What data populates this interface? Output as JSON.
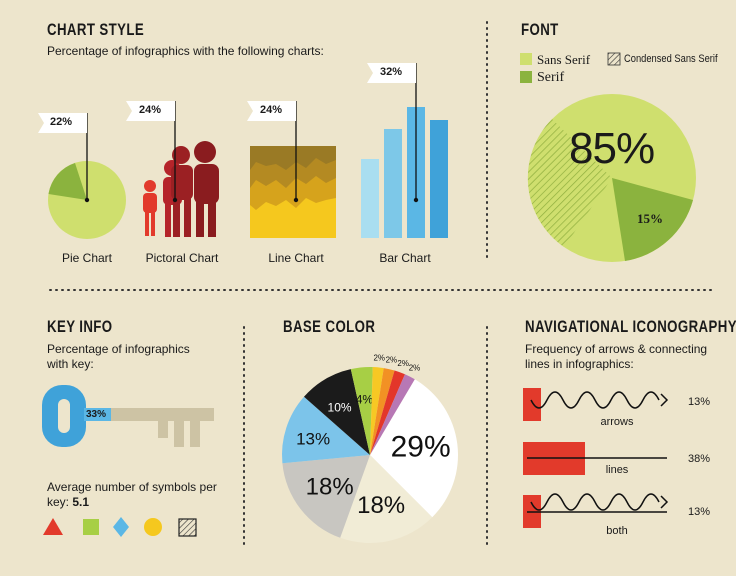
{
  "chart_style": {
    "title": "CHART STYLE",
    "subtitle": "Percentage of infographics with the following charts:",
    "items": [
      {
        "label": "Pie Chart",
        "value": "22%"
      },
      {
        "label": "Pictoral Chart",
        "value": "24%"
      },
      {
        "label": "Line Chart",
        "value": "24%"
      },
      {
        "label": "Bar Chart",
        "value": "32%"
      }
    ]
  },
  "font": {
    "title": "FONT",
    "legend": [
      "Sans Serif",
      "Condensed Sans Serif",
      "Serif"
    ],
    "big_value": "85%",
    "small_value": "15%"
  },
  "key_info": {
    "title": "KEY INFO",
    "subtitle": "Percentage of infographics with key:",
    "value": "33%",
    "avg_text": "Average number of symbols per key:",
    "avg_value": "5.1",
    "symbols": [
      "triangle-icon",
      "square-icon",
      "diamond-icon",
      "circle-icon",
      "hatched-square-icon"
    ]
  },
  "base_color": {
    "title": "BASE COLOR"
  },
  "nav": {
    "title": "NAVIGATIONAL ICONOGRAPHY",
    "subtitle": "Frequency of arrows & connecting lines in infographics:",
    "rows": [
      {
        "label": "arrows",
        "value": "13%"
      },
      {
        "label": "lines",
        "value": "38%"
      },
      {
        "label": "both",
        "value": "13%"
      }
    ]
  },
  "colors": {
    "background": "#ede5cc",
    "light_green": "#cfdf6e",
    "green": "#8bb33e",
    "red": "#e23a2b",
    "yellow": "#f5c81e",
    "blue": "#5bb7e5"
  },
  "chart_data": [
    {
      "type": "bar",
      "title": "CHART STYLE",
      "categories": [
        "Pie Chart",
        "Pictoral Chart",
        "Line Chart",
        "Bar Chart"
      ],
      "values": [
        22,
        24,
        24,
        32
      ]
    },
    {
      "type": "pie",
      "title": "FONT",
      "slices": [
        {
          "label": "Sans Serif",
          "value": 85
        },
        {
          "label": "Serif",
          "value": 15
        }
      ]
    },
    {
      "type": "pie",
      "title": "BASE COLOR",
      "slices": [
        {
          "label": "29%",
          "value": 29,
          "color": "#ffffff"
        },
        {
          "label": "18%",
          "value": 18,
          "color": "#f1ecd6"
        },
        {
          "label": "18%",
          "value": 18,
          "color": "#c8c6c1"
        },
        {
          "label": "13%",
          "value": 13,
          "color": "#7cc4ea"
        },
        {
          "label": "10%",
          "value": 10,
          "color": "#1b1b1b"
        },
        {
          "label": "4%",
          "value": 4,
          "color": "#a7cf45"
        },
        {
          "label": "2%",
          "value": 2,
          "color": "#f7c824"
        },
        {
          "label": "2%",
          "value": 2,
          "color": "#f29124"
        },
        {
          "label": "2%",
          "value": 2,
          "color": "#e3362a"
        },
        {
          "label": "2%",
          "value": 2,
          "color": "#b778b5"
        }
      ]
    },
    {
      "type": "bar",
      "title": "NAVIGATIONAL ICONOGRAPHY",
      "categories": [
        "arrows",
        "lines",
        "both"
      ],
      "values": [
        13,
        38,
        13
      ]
    }
  ]
}
